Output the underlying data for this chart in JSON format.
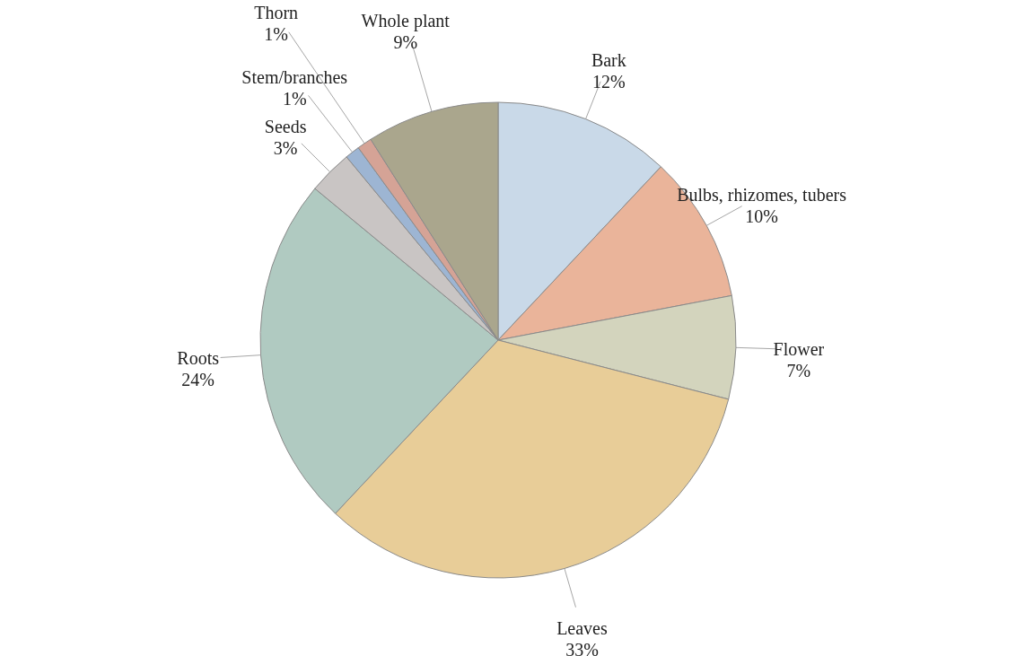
{
  "chart_data": {
    "type": "pie",
    "categories": [
      "Bark",
      "Bulbs, rhizomes, tubers",
      "Flower",
      "Leaves",
      "Roots",
      "Seeds",
      "Stem/branches",
      "Thorn",
      "Whole plant"
    ],
    "values": [
      12,
      10,
      7,
      33,
      24,
      3,
      1,
      1,
      9
    ],
    "value_labels": [
      "12%",
      "10%",
      "7%",
      "33%",
      "24%",
      "3%",
      "1%",
      "1%",
      "9%"
    ],
    "colors": [
      "#c9d9e8",
      "#eab49a",
      "#d3d4bd",
      "#e8cd98",
      "#b0cac1",
      "#c9c5c4",
      "#9db5d3",
      "#d5a396",
      "#aaa68d"
    ],
    "legend": false
  }
}
